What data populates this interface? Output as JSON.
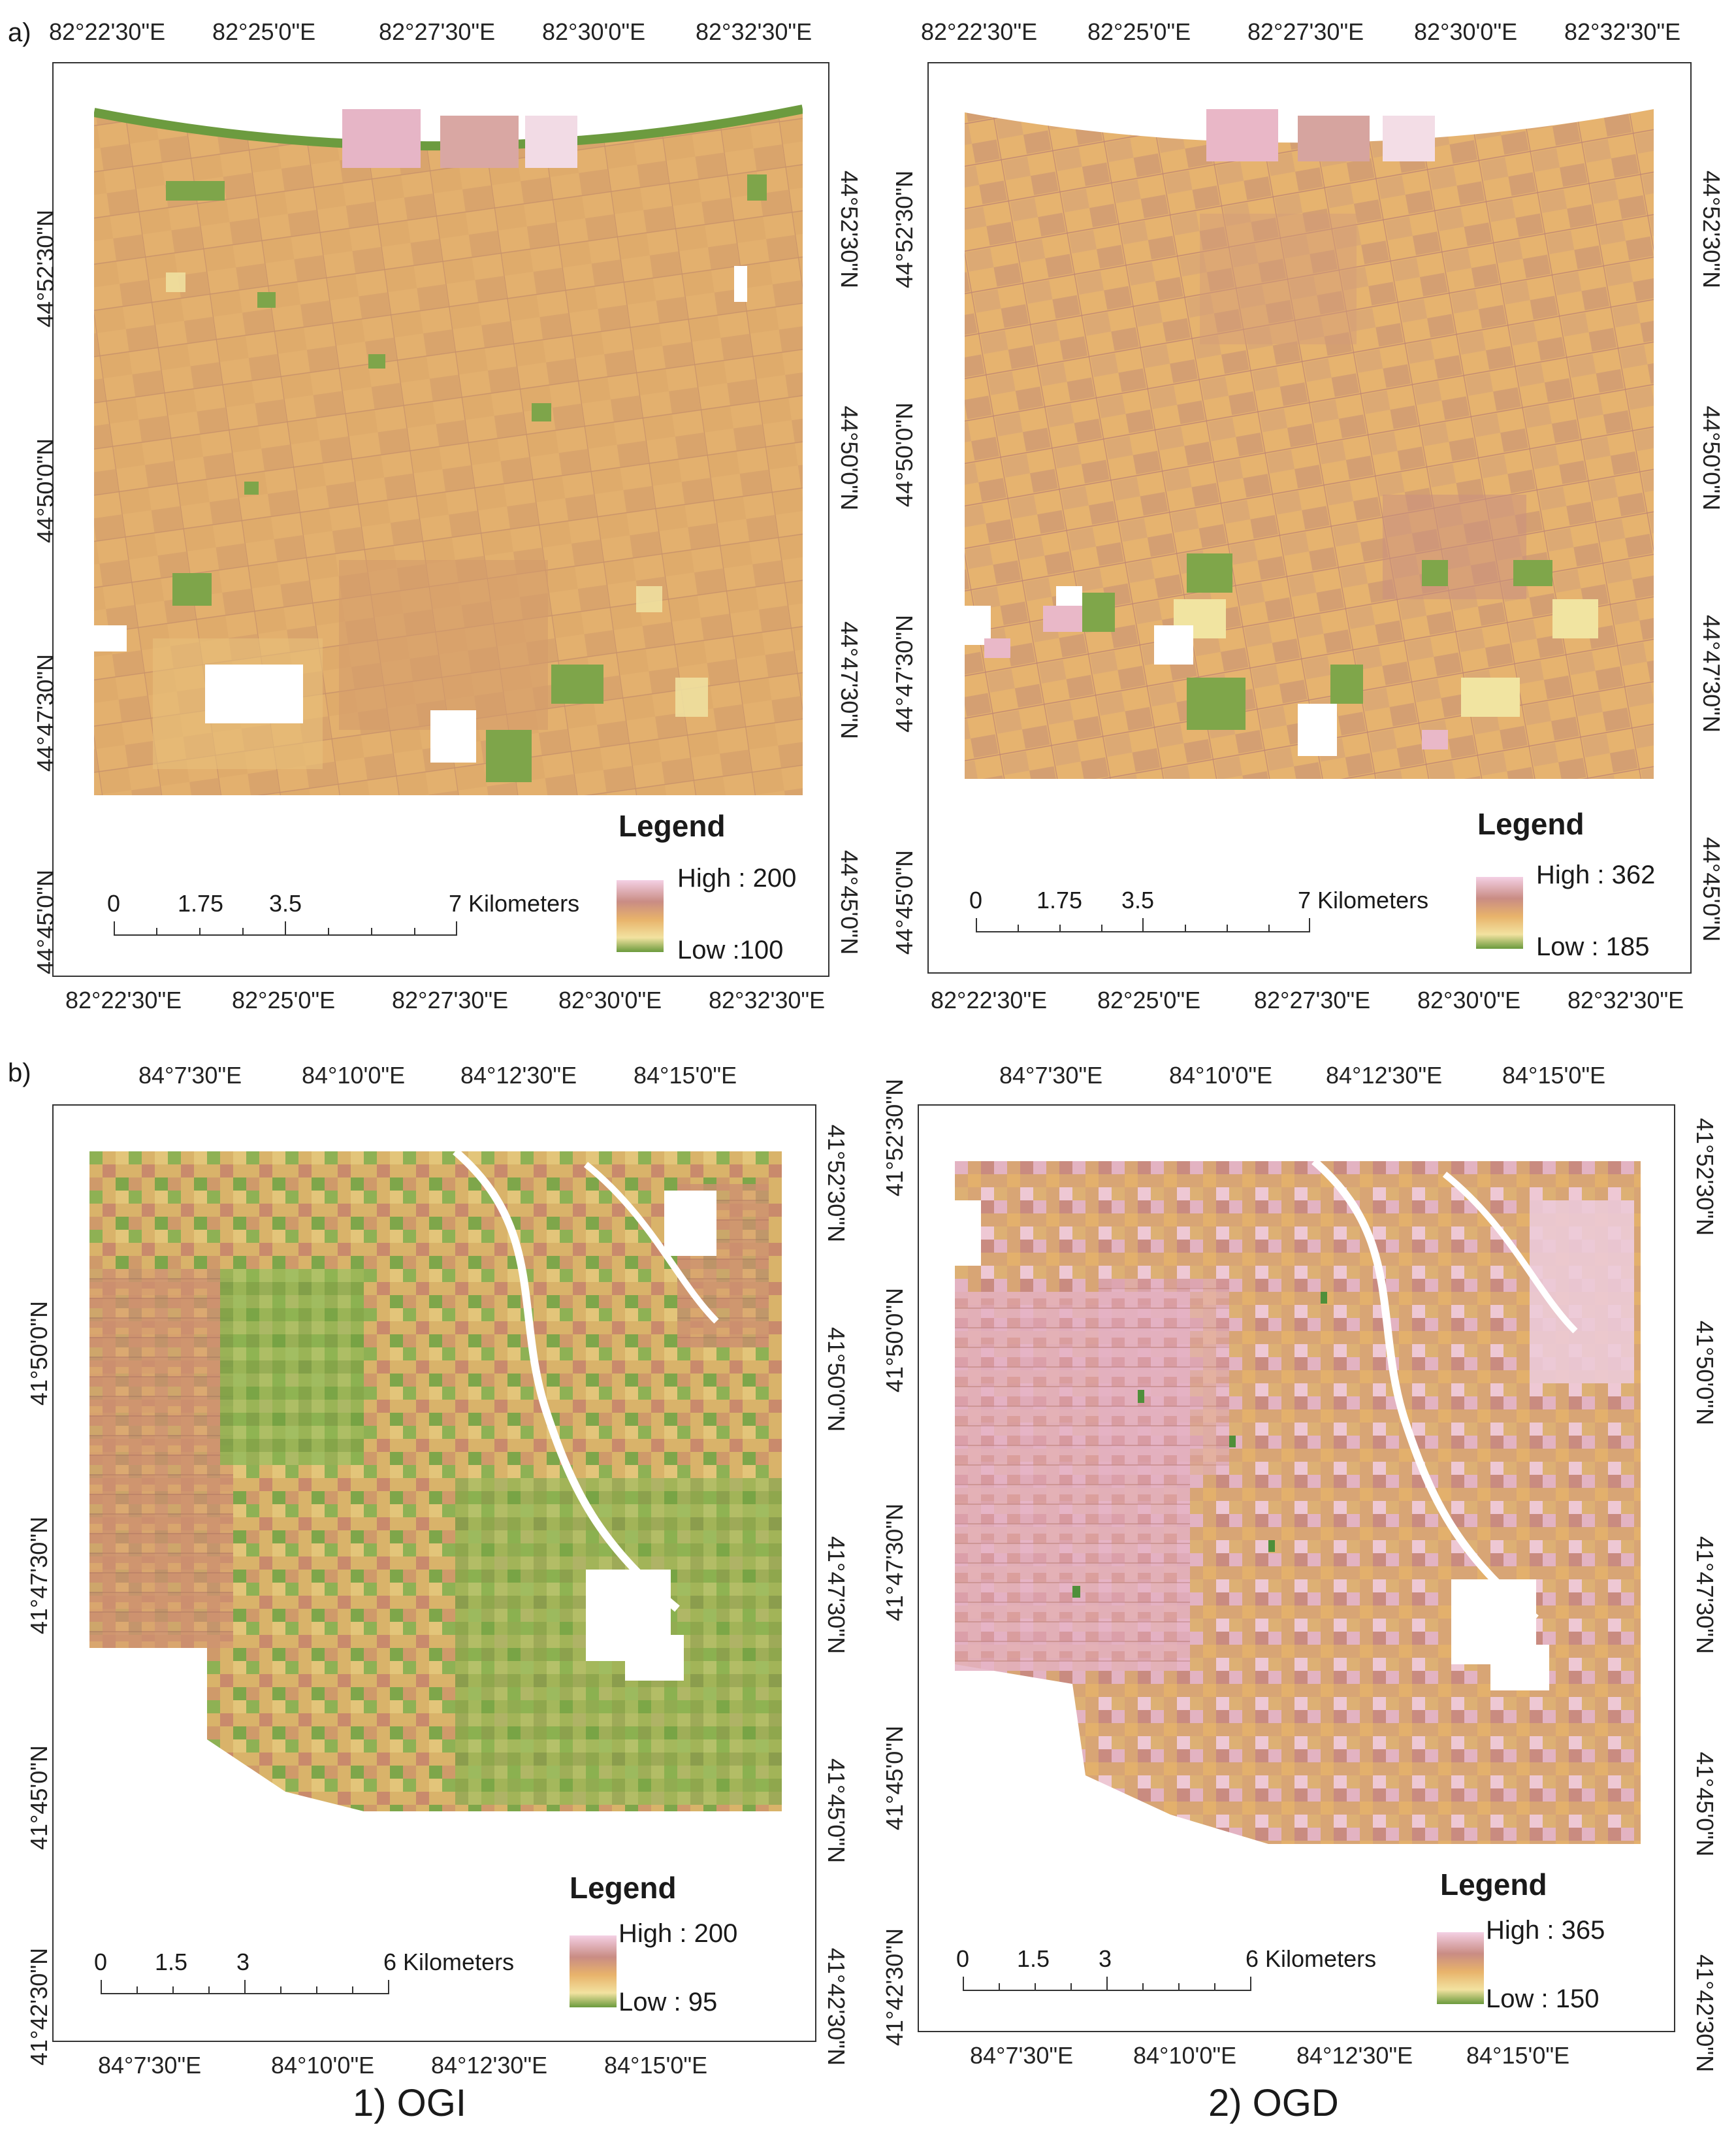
{
  "row_labels": [
    "a)",
    "b)"
  ],
  "captions": [
    "1) OGI",
    "2) OGD"
  ],
  "colors": {
    "background_tan": "#e4b36f",
    "ramp_high": "#f4d0e4",
    "ramp_mid_high": "#c98c84",
    "ramp_mid": "#e8b36b",
    "ramp_mid_low": "#f2e2a0",
    "ramp_low": "#6b9a3d",
    "green_patch": "#7fa64a",
    "pink_patch": "#e9b8c8",
    "dark_tan": "#cf9a6a"
  },
  "panels": [
    {
      "id": "a1",
      "top_ticks": [
        "82°22'30\"E",
        "82°25'0\"E",
        "82°27'30\"E",
        "82°30'0\"E",
        "82°32'30\"E"
      ],
      "bottom_ticks": [
        "82°22'30\"E",
        "82°25'0\"E",
        "82°27'30\"E",
        "82°30'0\"E",
        "82°32'30\"E"
      ],
      "left_ticks": [
        "44°52'30\"N",
        "44°50'0\"N",
        "44°47'30\"N",
        "44°45'0\"N"
      ],
      "right_ticks": [
        "44°52'30\"N",
        "44°50'0\"N",
        "44°47'30\"N",
        "44°45'0\"N"
      ],
      "legend_title": "Legend",
      "legend_high": "High : 200",
      "legend_low": "Low :100",
      "scale_labels": [
        "0",
        "1.75",
        "3.5",
        "7 Kilometers"
      ],
      "theme": "tan"
    },
    {
      "id": "a2",
      "top_ticks": [
        "82°22'30\"E",
        "82°25'0\"E",
        "82°27'30\"E",
        "82°30'0\"E",
        "82°32'30\"E"
      ],
      "bottom_ticks": [
        "82°22'30\"E",
        "82°25'0\"E",
        "82°27'30\"E",
        "82°30'0\"E",
        "82°32'30\"E"
      ],
      "left_ticks": [
        "44°52'30\"N",
        "44°50'0\"N",
        "44°47'30\"N",
        "44°45'0\"N"
      ],
      "right_ticks": [
        "44°52'30\"N",
        "44°50'0\"N",
        "44°47'30\"N",
        "44°45'0\"N"
      ],
      "legend_title": "Legend",
      "legend_high": "High : 362",
      "legend_low": "Low : 185",
      "scale_labels": [
        "0",
        "1.75",
        "3.5",
        "7 Kilometers"
      ],
      "theme": "tan-mixed"
    },
    {
      "id": "b1",
      "top_ticks": [
        "84°7'30\"E",
        "84°10'0\"E",
        "84°12'30\"E",
        "84°15'0\"E"
      ],
      "bottom_ticks": [
        "84°7'30\"E",
        "84°10'0\"E",
        "84°12'30\"E",
        "84°15'0\"E"
      ],
      "left_ticks": [
        "41°50'0\"N",
        "41°47'30\"N",
        "41°45'0\"N",
        "41°42'30\"N"
      ],
      "right_ticks": [
        "41°52'30\"N",
        "41°50'0\"N",
        "41°47'30\"N",
        "41°45'0\"N",
        "41°42'30\"N"
      ],
      "legend_title": "Legend",
      "legend_high": "High : 200",
      "legend_low": "Low : 95",
      "scale_labels": [
        "0",
        "1.5",
        "3",
        "6 Kilometers"
      ],
      "theme": "green"
    },
    {
      "id": "b2",
      "top_ticks": [
        "84°7'30\"E",
        "84°10'0\"E",
        "84°12'30\"E",
        "84°15'0\"E"
      ],
      "bottom_ticks": [
        "84°7'30\"E",
        "84°10'0\"E",
        "84°12'30\"E",
        "84°15'0\"E"
      ],
      "left_ticks": [
        "41°52'30\"N",
        "41°50'0\"N",
        "41°47'30\"N",
        "41°45'0\"N",
        "41°42'30\"N"
      ],
      "right_ticks": [
        "41°52'30\"N",
        "41°50'0\"N",
        "41°47'30\"N",
        "41°45'0\"N",
        "41°42'30\"N"
      ],
      "legend_title": "Legend",
      "legend_high": "High : 365",
      "legend_low": "Low : 150",
      "scale_labels": [
        "0",
        "1.5",
        "3",
        "6 Kilometers"
      ],
      "theme": "pink"
    }
  ]
}
